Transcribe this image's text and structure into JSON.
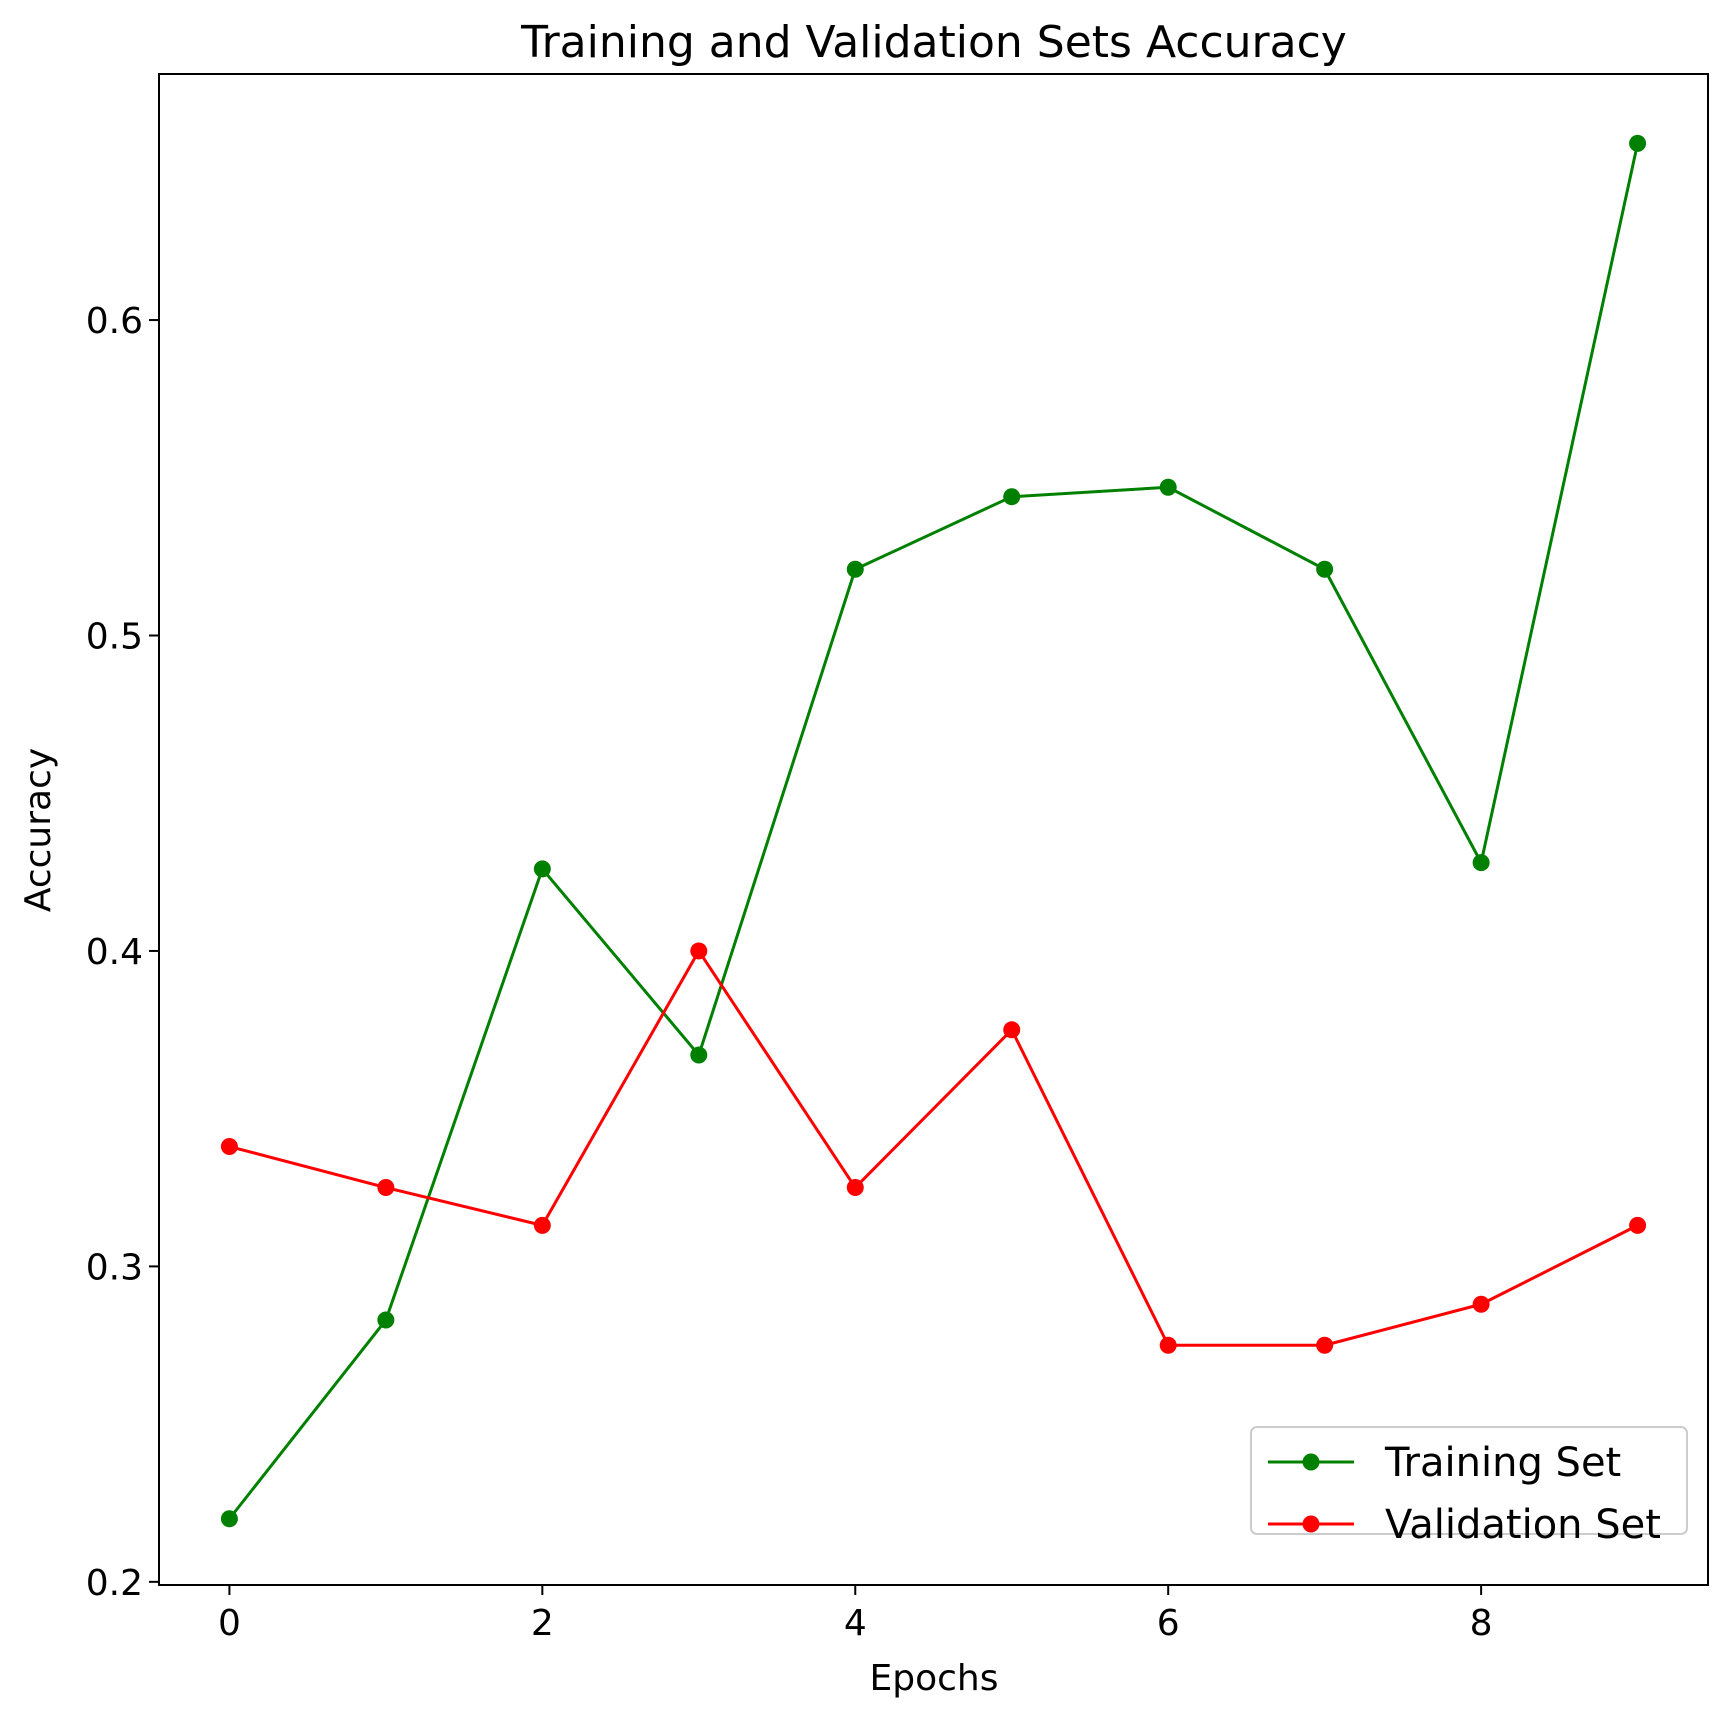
{
  "chart_data": {
    "type": "line",
    "title": "Training and Validation Sets Accuracy",
    "xlabel": "Epochs",
    "ylabel": "Accuracy",
    "xlim": [
      -0.45,
      9.45
    ],
    "ylim": [
      0.199,
      0.678
    ],
    "x_ticks": [
      0,
      2,
      4,
      6,
      8
    ],
    "x_tick_labels": [
      "0",
      "2",
      "4",
      "6",
      "8"
    ],
    "y_ticks": [
      0.2,
      0.3,
      0.4,
      0.5,
      0.6
    ],
    "y_tick_labels": [
      "0.2",
      "0.3",
      "0.4",
      "0.5",
      "0.6"
    ],
    "grid": false,
    "legend_position": "bottom-right",
    "x": [
      0,
      1,
      2,
      3,
      4,
      5,
      6,
      7,
      8,
      9
    ],
    "series": [
      {
        "name": "Training Set",
        "color": "#008000",
        "marker": "circle",
        "values": [
          0.22,
          0.283,
          0.426,
          0.367,
          0.521,
          0.544,
          0.547,
          0.521,
          0.428,
          0.656
        ]
      },
      {
        "name": "Validation Set",
        "color": "#ff0000",
        "marker": "circle",
        "values": [
          0.338,
          0.325,
          0.313,
          0.4,
          0.325,
          0.375,
          0.275,
          0.275,
          0.288,
          0.313
        ]
      }
    ]
  }
}
